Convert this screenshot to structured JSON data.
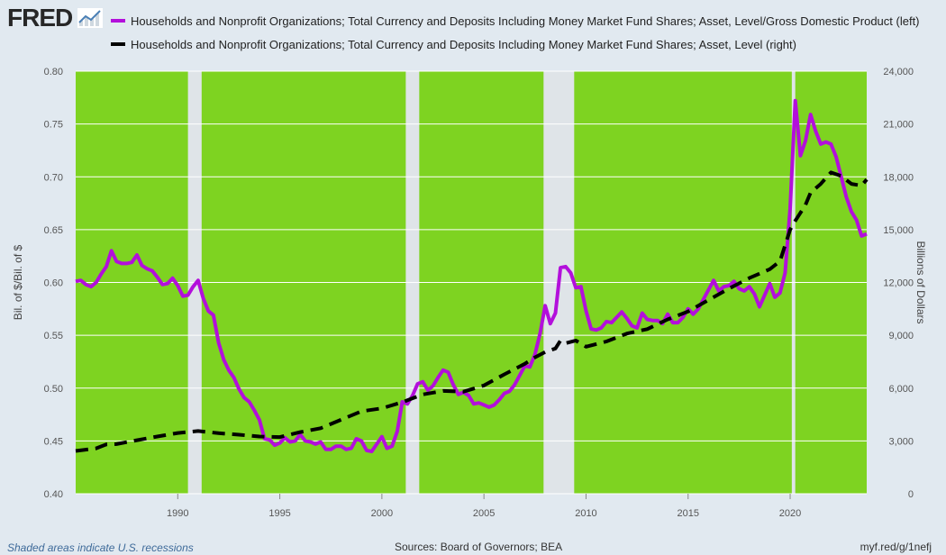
{
  "brand": {
    "name": "FRED",
    "icon": "trend-chart-icon"
  },
  "legend": [
    {
      "label": "Households and Nonprofit Organizations; Total Currency and Deposits Including Money Market Fund Shares; Asset, Level/Gross Domestic Product (left)",
      "color": "#b30fdb",
      "style": "solid"
    },
    {
      "label": "Households and Nonprofit Organizations; Total Currency and Deposits Including Money Market Fund Shares; Asset, Level (right)",
      "color": "#000000",
      "style": "dashed"
    }
  ],
  "footer": {
    "note": "Shaded areas indicate U.S. recessions",
    "sources": "Sources: Board of Governors; BEA",
    "link": "myf.red/g/1nefj"
  },
  "colors": {
    "plot_bg": "#7ed321",
    "recession": "#dfe4e8",
    "page_bg": "#e1e9f0",
    "series_left": "#b30fdb",
    "series_right": "#000000"
  },
  "chart_data": {
    "type": "line",
    "xlim": [
      1985.0,
      2023.75
    ],
    "x_ticks": [
      "1990",
      "1995",
      "2000",
      "2005",
      "2010",
      "2015",
      "2020"
    ],
    "left_axis": {
      "label": "Bil. of $/Bil. of $",
      "range": [
        0.4,
        0.8
      ],
      "ticks": [
        "0.40",
        "0.45",
        "0.50",
        "0.55",
        "0.60",
        "0.65",
        "0.70",
        "0.75",
        "0.80"
      ]
    },
    "right_axis": {
      "label": "Billions of Dollars",
      "range": [
        0,
        24000
      ],
      "ticks": [
        "0",
        "3,000",
        "6,000",
        "9,000",
        "12,000",
        "15,000",
        "18,000",
        "21,000",
        "24,000"
      ]
    },
    "recessions": [
      [
        1990.5,
        1991.17
      ],
      [
        2001.17,
        2001.83
      ],
      [
        2007.92,
        2009.42
      ],
      [
        2020.08,
        2020.25
      ]
    ],
    "series": [
      {
        "name": "Currency and Deposits / GDP",
        "axis": "left",
        "points": [
          [
            1985.0,
            0.601
          ],
          [
            1985.25,
            0.602
          ],
          [
            1985.5,
            0.598
          ],
          [
            1985.75,
            0.596
          ],
          [
            1986.0,
            0.6
          ],
          [
            1986.25,
            0.608
          ],
          [
            1986.5,
            0.615
          ],
          [
            1986.75,
            0.63
          ],
          [
            1987.0,
            0.62
          ],
          [
            1987.25,
            0.618
          ],
          [
            1987.5,
            0.618
          ],
          [
            1987.75,
            0.619
          ],
          [
            1988.0,
            0.626
          ],
          [
            1988.25,
            0.616
          ],
          [
            1988.5,
            0.613
          ],
          [
            1988.75,
            0.611
          ],
          [
            1989.0,
            0.605
          ],
          [
            1989.25,
            0.598
          ],
          [
            1989.5,
            0.599
          ],
          [
            1989.75,
            0.604
          ],
          [
            1990.0,
            0.597
          ],
          [
            1990.25,
            0.587
          ],
          [
            1990.5,
            0.588
          ],
          [
            1990.75,
            0.596
          ],
          [
            1991.0,
            0.602
          ],
          [
            1991.25,
            0.585
          ],
          [
            1991.5,
            0.573
          ],
          [
            1991.75,
            0.569
          ],
          [
            1992.0,
            0.543
          ],
          [
            1992.25,
            0.527
          ],
          [
            1992.5,
            0.517
          ],
          [
            1992.75,
            0.51
          ],
          [
            1993.0,
            0.499
          ],
          [
            1993.25,
            0.491
          ],
          [
            1993.5,
            0.487
          ],
          [
            1993.75,
            0.479
          ],
          [
            1994.0,
            0.47
          ],
          [
            1994.25,
            0.452
          ],
          [
            1994.5,
            0.451
          ],
          [
            1994.75,
            0.446
          ],
          [
            1995.0,
            0.448
          ],
          [
            1995.25,
            0.453
          ],
          [
            1995.5,
            0.449
          ],
          [
            1995.75,
            0.45
          ],
          [
            1996.0,
            0.456
          ],
          [
            1996.25,
            0.45
          ],
          [
            1996.5,
            0.449
          ],
          [
            1996.75,
            0.447
          ],
          [
            1997.0,
            0.449
          ],
          [
            1997.25,
            0.442
          ],
          [
            1997.5,
            0.442
          ],
          [
            1997.75,
            0.445
          ],
          [
            1998.0,
            0.445
          ],
          [
            1998.25,
            0.442
          ],
          [
            1998.5,
            0.443
          ],
          [
            1998.75,
            0.452
          ],
          [
            1999.0,
            0.45
          ],
          [
            1999.25,
            0.441
          ],
          [
            1999.5,
            0.44
          ],
          [
            1999.75,
            0.447
          ],
          [
            2000.0,
            0.454
          ],
          [
            2000.25,
            0.443
          ],
          [
            2000.5,
            0.445
          ],
          [
            2000.75,
            0.459
          ],
          [
            2001.0,
            0.487
          ],
          [
            2001.25,
            0.485
          ],
          [
            2001.5,
            0.493
          ],
          [
            2001.75,
            0.504
          ],
          [
            2002.0,
            0.506
          ],
          [
            2002.25,
            0.498
          ],
          [
            2002.5,
            0.502
          ],
          [
            2002.75,
            0.51
          ],
          [
            2003.0,
            0.517
          ],
          [
            2003.25,
            0.515
          ],
          [
            2003.5,
            0.503
          ],
          [
            2003.75,
            0.494
          ],
          [
            2004.0,
            0.496
          ],
          [
            2004.25,
            0.493
          ],
          [
            2004.5,
            0.485
          ],
          [
            2004.75,
            0.486
          ],
          [
            2005.0,
            0.484
          ],
          [
            2005.25,
            0.482
          ],
          [
            2005.5,
            0.484
          ],
          [
            2005.75,
            0.489
          ],
          [
            2006.0,
            0.495
          ],
          [
            2006.25,
            0.497
          ],
          [
            2006.5,
            0.503
          ],
          [
            2006.75,
            0.512
          ],
          [
            2007.0,
            0.521
          ],
          [
            2007.25,
            0.52
          ],
          [
            2007.5,
            0.532
          ],
          [
            2007.75,
            0.552
          ],
          [
            2008.0,
            0.578
          ],
          [
            2008.25,
            0.561
          ],
          [
            2008.5,
            0.571
          ],
          [
            2008.75,
            0.614
          ],
          [
            2009.0,
            0.615
          ],
          [
            2009.25,
            0.609
          ],
          [
            2009.5,
            0.595
          ],
          [
            2009.75,
            0.596
          ],
          [
            2010.0,
            0.573
          ],
          [
            2010.25,
            0.556
          ],
          [
            2010.5,
            0.555
          ],
          [
            2010.75,
            0.557
          ],
          [
            2011.0,
            0.563
          ],
          [
            2011.25,
            0.562
          ],
          [
            2011.5,
            0.567
          ],
          [
            2011.75,
            0.572
          ],
          [
            2012.0,
            0.566
          ],
          [
            2012.25,
            0.559
          ],
          [
            2012.5,
            0.557
          ],
          [
            2012.75,
            0.571
          ],
          [
            2013.0,
            0.565
          ],
          [
            2013.25,
            0.564
          ],
          [
            2013.5,
            0.564
          ],
          [
            2013.75,
            0.561
          ],
          [
            2014.0,
            0.57
          ],
          [
            2014.25,
            0.562
          ],
          [
            2014.5,
            0.562
          ],
          [
            2014.75,
            0.567
          ],
          [
            2015.0,
            0.575
          ],
          [
            2015.25,
            0.57
          ],
          [
            2015.5,
            0.575
          ],
          [
            2015.75,
            0.584
          ],
          [
            2016.0,
            0.593
          ],
          [
            2016.25,
            0.602
          ],
          [
            2016.5,
            0.592
          ],
          [
            2016.75,
            0.596
          ],
          [
            2017.0,
            0.597
          ],
          [
            2017.25,
            0.601
          ],
          [
            2017.5,
            0.594
          ],
          [
            2017.75,
            0.592
          ],
          [
            2018.0,
            0.596
          ],
          [
            2018.25,
            0.589
          ],
          [
            2018.5,
            0.577
          ],
          [
            2018.75,
            0.588
          ],
          [
            2019.0,
            0.599
          ],
          [
            2019.25,
            0.586
          ],
          [
            2019.5,
            0.59
          ],
          [
            2019.75,
            0.609
          ],
          [
            2020.0,
            0.67
          ],
          [
            2020.25,
            0.772
          ],
          [
            2020.5,
            0.72
          ],
          [
            2020.75,
            0.734
          ],
          [
            2021.0,
            0.759
          ],
          [
            2021.25,
            0.743
          ],
          [
            2021.5,
            0.731
          ],
          [
            2021.75,
            0.733
          ],
          [
            2022.0,
            0.731
          ],
          [
            2022.25,
            0.719
          ],
          [
            2022.5,
            0.7
          ],
          [
            2022.75,
            0.681
          ],
          [
            2023.0,
            0.667
          ],
          [
            2023.25,
            0.659
          ],
          [
            2023.5,
            0.644
          ],
          [
            2023.75,
            0.646
          ]
        ]
      },
      {
        "name": "Currency and Deposits Level",
        "axis": "right",
        "points": [
          [
            1985.0,
            2430
          ],
          [
            1986.0,
            2580
          ],
          [
            1986.5,
            2800
          ],
          [
            1987.0,
            2820
          ],
          [
            1988.0,
            3040
          ],
          [
            1989.0,
            3250
          ],
          [
            1990.0,
            3450
          ],
          [
            1991.0,
            3560
          ],
          [
            1992.0,
            3440
          ],
          [
            1993.0,
            3350
          ],
          [
            1994.0,
            3250
          ],
          [
            1995.0,
            3220
          ],
          [
            1996.0,
            3500
          ],
          [
            1997.0,
            3720
          ],
          [
            1998.0,
            4200
          ],
          [
            1999.0,
            4680
          ],
          [
            2000.0,
            4850
          ],
          [
            2001.0,
            5200
          ],
          [
            2002.0,
            5640
          ],
          [
            2003.0,
            5840
          ],
          [
            2004.0,
            5800
          ],
          [
            2005.0,
            6150
          ],
          [
            2006.0,
            6780
          ],
          [
            2007.0,
            7380
          ],
          [
            2007.5,
            7750
          ],
          [
            2008.0,
            8050
          ],
          [
            2008.5,
            8250
          ],
          [
            2008.75,
            8700
          ],
          [
            2009.0,
            8550
          ],
          [
            2009.5,
            8700
          ],
          [
            2010.0,
            8350
          ],
          [
            2011.0,
            8650
          ],
          [
            2012.0,
            9100
          ],
          [
            2013.0,
            9350
          ],
          [
            2014.0,
            9900
          ],
          [
            2015.0,
            10350
          ],
          [
            2016.0,
            11000
          ],
          [
            2017.0,
            11650
          ],
          [
            2018.0,
            12250
          ],
          [
            2019.0,
            12750
          ],
          [
            2019.5,
            13200
          ],
          [
            2020.0,
            15000
          ],
          [
            2020.25,
            15500
          ],
          [
            2020.75,
            16400
          ],
          [
            2021.0,
            17100
          ],
          [
            2021.5,
            17600
          ],
          [
            2022.0,
            18250
          ],
          [
            2022.5,
            18050
          ],
          [
            2023.0,
            17600
          ],
          [
            2023.5,
            17500
          ],
          [
            2023.75,
            17850
          ]
        ]
      }
    ]
  }
}
